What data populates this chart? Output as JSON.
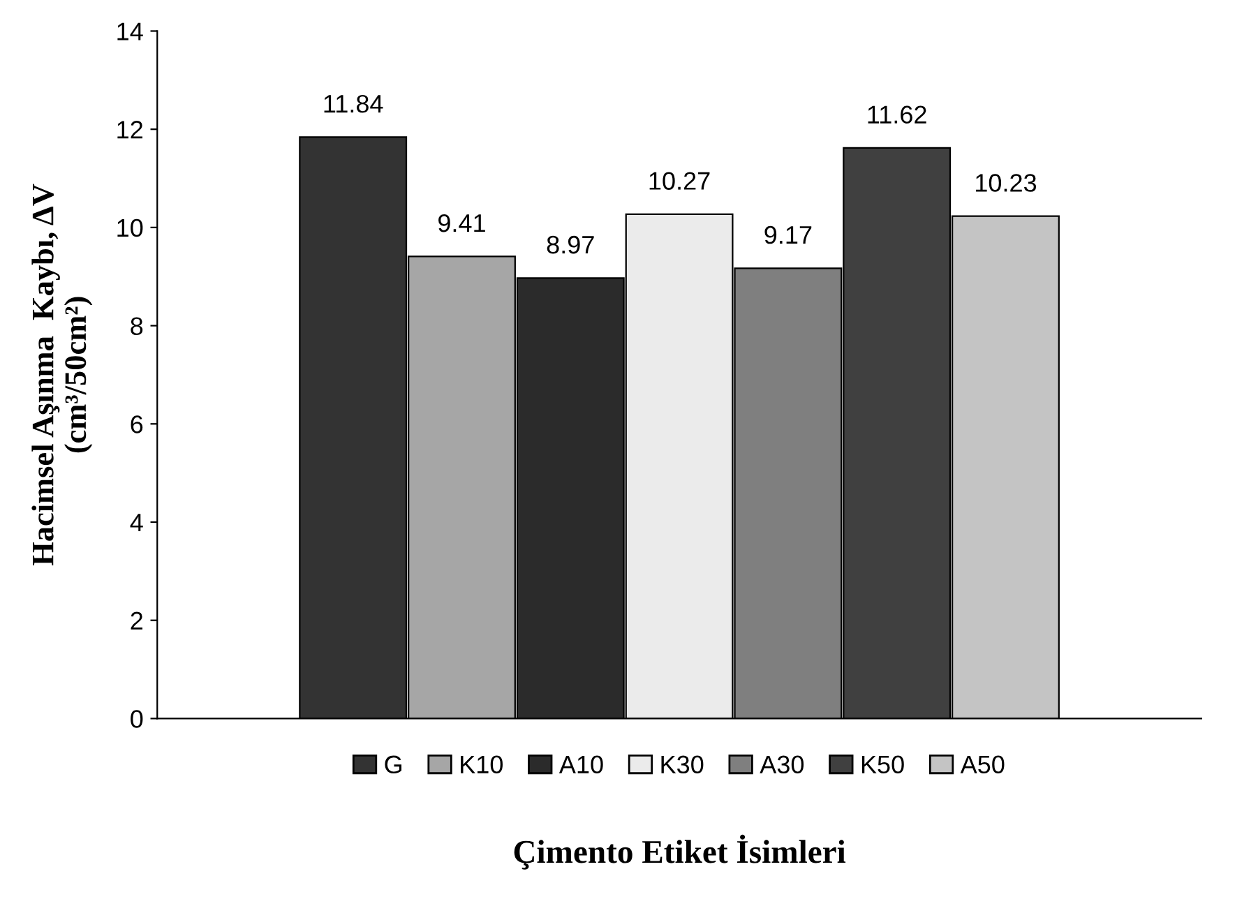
{
  "chart_data": {
    "type": "bar",
    "xlabel": "Çimento Etiket İsimleri",
    "ylabel": "Hacimsel Aşınma  Kaybı, ΔV\n(cm³/50cm²)",
    "categories": [
      null,
      null,
      null,
      null,
      null,
      null,
      null
    ],
    "series": [
      {
        "name": "G",
        "color": "#333333",
        "values": [
          11.84,
          null,
          null,
          null,
          null,
          null,
          null
        ]
      },
      {
        "name": "K10",
        "color": "#a6a6a6",
        "values": [
          null,
          9.41,
          null,
          null,
          null,
          null,
          null
        ]
      },
      {
        "name": "A10",
        "color": "#2b2b2b",
        "values": [
          null,
          null,
          8.97,
          null,
          null,
          null,
          null
        ]
      },
      {
        "name": "K30",
        "color": "#ebebeb",
        "values": [
          null,
          null,
          null,
          10.27,
          null,
          null,
          null
        ]
      },
      {
        "name": "A30",
        "color": "#7f7f7f",
        "values": [
          null,
          null,
          null,
          null,
          9.17,
          null,
          null
        ]
      },
      {
        "name": "K50",
        "color": "#404040",
        "values": [
          null,
          null,
          null,
          null,
          null,
          11.62,
          null
        ]
      },
      {
        "name": "A50",
        "color": "#c4c4c4",
        "values": [
          null,
          null,
          null,
          null,
          null,
          null,
          10.23
        ]
      }
    ],
    "ylim": [
      0,
      14
    ],
    "yticks": [
      0,
      2,
      4,
      6,
      8,
      10,
      12,
      14
    ],
    "grid": false,
    "stacked": true,
    "legend": "bottom",
    "data_labels": true
  }
}
